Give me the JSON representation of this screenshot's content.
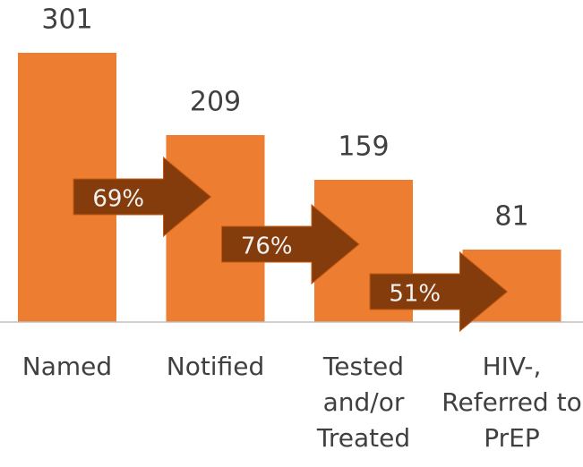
{
  "chart_data": {
    "type": "bar",
    "categories": [
      "Named",
      "Notified",
      "Tested and/or Treated",
      "HIV-, Referred to PrEP"
    ],
    "values": [
      301,
      209,
      159,
      81
    ],
    "color": "#ed7d31",
    "ylim": [
      0,
      301
    ],
    "annotations": [
      "69%",
      "76%",
      "51%"
    ],
    "annotation_color": "#843c0c"
  }
}
